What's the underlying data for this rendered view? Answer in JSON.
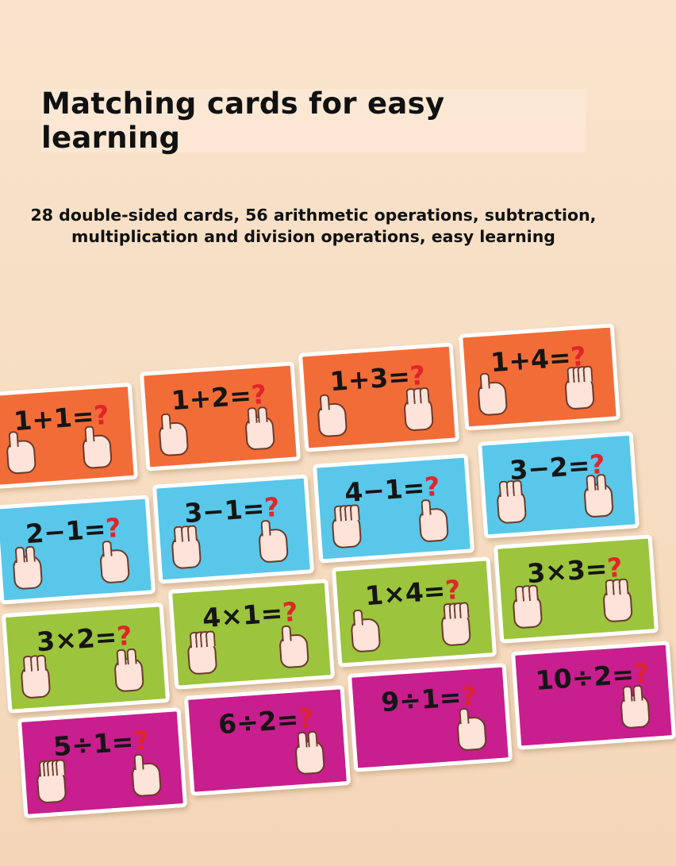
{
  "title": "Matching cards for easy learning",
  "subtitle": "28 double-sided cards, 56 arithmetic operations, subtraction, multiplication and division operations, easy learning",
  "colors": {
    "orange": "#f26c38",
    "blue": "#58c7ea",
    "green": "#9cc43c",
    "magenta": "#c81e8e",
    "question": "#e0252a"
  },
  "cards": [
    {
      "expr": "1+1=",
      "q": "?",
      "color": "orange",
      "hands": [
        1,
        1
      ]
    },
    {
      "expr": "1+2=",
      "q": "?",
      "color": "orange",
      "hands": [
        1,
        2
      ]
    },
    {
      "expr": "1+3=",
      "q": "?",
      "color": "orange",
      "hands": [
        1,
        3
      ]
    },
    {
      "expr": "1+4=",
      "q": "?",
      "color": "orange",
      "hands": [
        1,
        4
      ]
    },
    {
      "expr": "2−1=",
      "q": "?",
      "color": "blue",
      "hands": [
        2,
        1
      ]
    },
    {
      "expr": "3−1=",
      "q": "?",
      "color": "blue",
      "hands": [
        3,
        1
      ]
    },
    {
      "expr": "4−1=",
      "q": "?",
      "color": "blue",
      "hands": [
        4,
        1
      ]
    },
    {
      "expr": "3−2=",
      "q": "?",
      "color": "blue",
      "hands": [
        3,
        2
      ]
    },
    {
      "expr": "3×2=",
      "q": "?",
      "color": "green",
      "hands": [
        3,
        2
      ]
    },
    {
      "expr": "4×1=",
      "q": "?",
      "color": "green",
      "hands": [
        4,
        1
      ]
    },
    {
      "expr": "1×4=",
      "q": "?",
      "color": "green",
      "hands": [
        1,
        4
      ]
    },
    {
      "expr": "3×3=",
      "q": "?",
      "color": "green",
      "hands": [
        3,
        3
      ]
    },
    {
      "expr": "5÷1=",
      "q": "?",
      "color": "magenta",
      "hands": [
        5,
        1
      ]
    },
    {
      "expr": "6÷2=",
      "q": "?",
      "color": "magenta",
      "hands": [
        2
      ]
    },
    {
      "expr": "9÷1=",
      "q": "?",
      "color": "magenta",
      "hands": [
        1
      ]
    },
    {
      "expr": "10÷2=",
      "q": "?",
      "color": "magenta",
      "hands": [
        2
      ]
    }
  ]
}
